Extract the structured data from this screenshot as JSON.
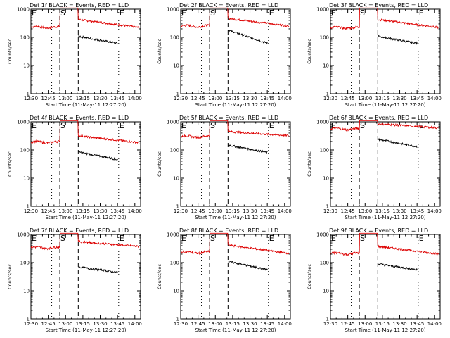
{
  "chart_data": {
    "type": "line",
    "layout": "3x3 grid",
    "xlabel": "Start Time (11-May-11 12:27:20)",
    "ylabel": "Counts/sec",
    "y_scale": "log",
    "ylim": [
      1,
      1000
    ],
    "y_tick_labels": [
      "1",
      "10",
      "100",
      "1000"
    ],
    "xlim_minutes_after_1230": [
      0,
      95
    ],
    "x_tick_labels": [
      "12:30",
      "12:45",
      "13:00",
      "13:15",
      "13:30",
      "13:45",
      "14:00"
    ],
    "colors": {
      "events": "#000000",
      "lld": "#dd0000"
    },
    "markers": [
      {
        "label": "E",
        "time": "12:30",
        "style": "dotted"
      },
      {
        "label": "",
        "time": "12:48",
        "style": "dotted"
      },
      {
        "label": "S",
        "time": "12:55",
        "style": "dashed"
      },
      {
        "label": "",
        "time": "13:11",
        "style": "dashed"
      },
      {
        "label": "E",
        "time": "13:46",
        "style": "dotted"
      }
    ],
    "panels": [
      {
        "title": "Det 1f BLACK = Events, RED = LLD",
        "lld_pre": 230,
        "lld_peak": 1100,
        "lld_post_start": 430,
        "lld_post_end": 220,
        "events_start": 110,
        "events_end": 60
      },
      {
        "title": "Det 2f BLACK = Events, RED = LLD",
        "lld_pre": 250,
        "lld_peak": 1100,
        "lld_post_start": 470,
        "lld_post_end": 250,
        "events_start": 180,
        "events_end": 60
      },
      {
        "title": "Det 3f BLACK = Events, RED = LLD",
        "lld_pre": 220,
        "lld_peak": 1100,
        "lld_post_start": 430,
        "lld_post_end": 220,
        "events_start": 110,
        "events_end": 60
      },
      {
        "title": "Det 4f BLACK = Events, RED = LLD",
        "lld_pre": 190,
        "lld_peak": 1100,
        "lld_post_start": 320,
        "lld_post_end": 180,
        "events_start": 85,
        "events_end": 45
      },
      {
        "title": "Det 5f BLACK = Events, RED = LLD",
        "lld_pre": 300,
        "lld_peak": 1100,
        "lld_post_start": 450,
        "lld_post_end": 320,
        "events_start": 150,
        "events_end": 80
      },
      {
        "title": "Det 6f BLACK = Events, RED = LLD",
        "lld_pre": 560,
        "lld_peak": 1100,
        "lld_post_start": 850,
        "lld_post_end": 600,
        "events_start": 240,
        "events_end": 130
      },
      {
        "title": "Det 7f BLACK = Events, RED = LLD",
        "lld_pre": 340,
        "lld_peak": 1100,
        "lld_post_start": 560,
        "lld_post_end": 370,
        "events_start": 70,
        "events_end": 45
      },
      {
        "title": "Det 8f BLACK = Events, RED = LLD",
        "lld_pre": 230,
        "lld_peak": 1100,
        "lld_post_start": 420,
        "lld_post_end": 210,
        "events_start": 110,
        "events_end": 55
      },
      {
        "title": "Det 9f BLACK = Events, RED = LLD",
        "lld_pre": 210,
        "lld_peak": 1100,
        "lld_post_start": 380,
        "lld_post_end": 200,
        "events_start": 90,
        "events_end": 55
      }
    ]
  }
}
